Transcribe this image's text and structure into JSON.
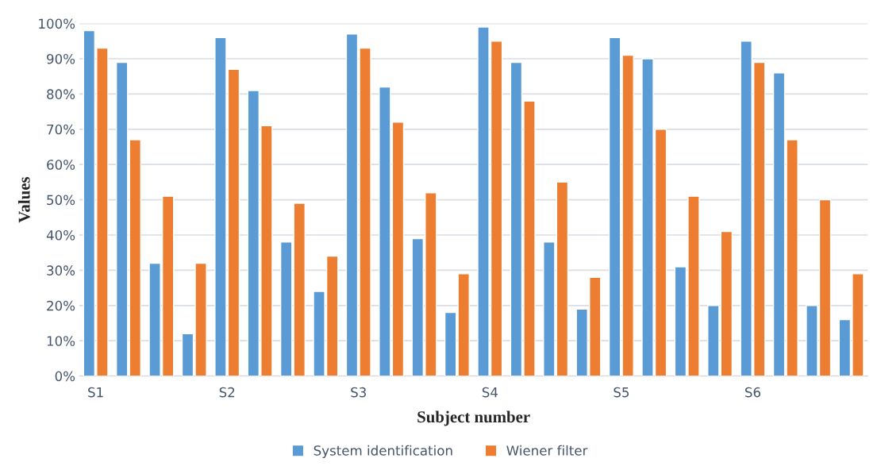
{
  "chart_data": {
    "type": "bar",
    "xlabel": "Subject number",
    "ylabel": "Values",
    "categories": [
      "S1",
      null,
      null,
      null,
      "S2",
      null,
      null,
      null,
      "S3",
      null,
      null,
      null,
      "S4",
      null,
      null,
      null,
      "S5",
      null,
      null,
      null,
      "S6",
      null,
      null,
      null
    ],
    "series": [
      {
        "name": "System identification",
        "color": "#5b9bd5",
        "values": [
          98,
          89,
          32,
          12,
          96,
          81,
          38,
          24,
          97,
          82,
          39,
          18,
          99,
          89,
          38,
          19,
          96,
          90,
          31,
          20,
          95,
          86,
          20,
          16
        ]
      },
      {
        "name": "Wiener filter",
        "color": "#ed7d31",
        "values": [
          93,
          67,
          51,
          32,
          87,
          71,
          49,
          34,
          93,
          72,
          52,
          29,
          95,
          78,
          55,
          28,
          91,
          70,
          51,
          41,
          89,
          67,
          50,
          29
        ]
      }
    ],
    "ylim": [
      0,
      100
    ],
    "yticks": [
      {
        "value": 0,
        "label": "0%"
      },
      {
        "value": 10,
        "label": "10%"
      },
      {
        "value": 20,
        "label": "20%"
      },
      {
        "value": 30,
        "label": "30%"
      },
      {
        "value": 40,
        "label": "40%"
      },
      {
        "value": 50,
        "label": "50%"
      },
      {
        "value": 60,
        "label": "60%"
      },
      {
        "value": 70,
        "label": "70%"
      },
      {
        "value": 80,
        "label": "80%"
      },
      {
        "value": 90,
        "label": "90%"
      },
      {
        "value": 100,
        "label": "100%"
      }
    ],
    "grid": "y",
    "legend": "bottom"
  }
}
